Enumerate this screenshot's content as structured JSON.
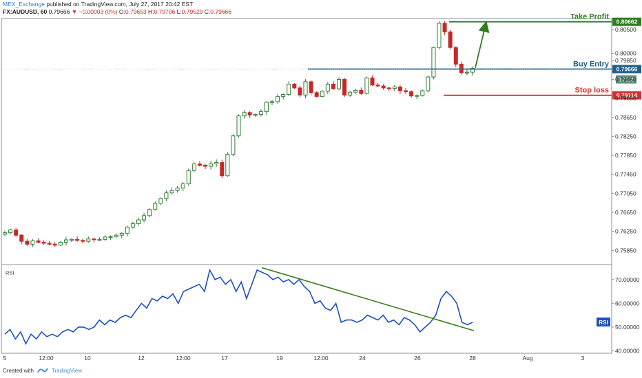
{
  "header": {
    "publisher": "MEX_Exchange",
    "published_text": "published on TradingView.com, July 27, 2017 20:42 EST",
    "symbol": "FX:AUDUSD, 60",
    "last_price": "0.79666",
    "change": "▼ −0.00003 (0%)",
    "ohlc": {
      "o_label": "O:",
      "o": "0.79653",
      "h_label": "H:",
      "h": "0.79706",
      "l_label": "L:",
      "l": "0.79529",
      "c_label": "C:",
      "c": "0.79666"
    }
  },
  "footer": {
    "created_with": "Created with",
    "brand": "TradingView"
  },
  "chart_data": [
    {
      "type": "candlestick",
      "price_axis_ticks": [
        0.805,
        0.8,
        0.7985,
        0.7945,
        0.7905,
        0.7865,
        0.7825,
        0.7785,
        0.7745,
        0.7705,
        0.7665,
        0.7625,
        0.7585
      ],
      "price_axis_labels": [
        "0.80500",
        "0.80000",
        "0.79850",
        "0.79450",
        "0.79050",
        "0.78650",
        "0.78250",
        "0.77850",
        "0.77450",
        "0.77050",
        "0.76650",
        "0.76250",
        "0.75850"
      ],
      "ylim": [
        0.7555,
        0.8073
      ],
      "x_tick_labels": [
        "5",
        "12:00",
        "10",
        "12",
        "12:00",
        "17",
        "19",
        "12:00",
        "24",
        "26",
        "28",
        "Aug",
        "3"
      ],
      "close_path": [
        0.7622,
        0.7628,
        0.7617,
        0.7604,
        0.7598,
        0.7605,
        0.7602,
        0.76,
        0.7598,
        0.7596,
        0.7602,
        0.7607,
        0.7608,
        0.7606,
        0.7604,
        0.7609,
        0.7608,
        0.7608,
        0.7613,
        0.7614,
        0.7617,
        0.7621,
        0.7634,
        0.7641,
        0.7649,
        0.7658,
        0.7671,
        0.7684,
        0.7694,
        0.7706,
        0.7711,
        0.7716,
        0.7725,
        0.7753,
        0.7767,
        0.7764,
        0.7762,
        0.7767,
        0.777,
        0.7742,
        0.7787,
        0.7826,
        0.7868,
        0.7875,
        0.787,
        0.7871,
        0.7877,
        0.7897,
        0.7898,
        0.7909,
        0.7913,
        0.7935,
        0.7927,
        0.7912,
        0.794,
        0.7917,
        0.7909,
        0.792,
        0.7935,
        0.7925,
        0.7945,
        0.7912,
        0.7918,
        0.7922,
        0.7915,
        0.7948,
        0.7933,
        0.7931,
        0.7927,
        0.7926,
        0.7929,
        0.7921,
        0.7919,
        0.791,
        0.7911,
        0.7921,
        0.795,
        0.8012,
        0.8063,
        0.8045,
        0.8012,
        0.7977,
        0.7959,
        0.796,
        0.7968
      ],
      "annotations": [
        {
          "label": "Take Profit",
          "value": 0.80662,
          "value_label": "0.80662",
          "color": "#2e7d1f"
        },
        {
          "label": "Buy Entry",
          "value": 0.79666,
          "value_label": "0.79666",
          "color": "#1f5f8b"
        },
        {
          "label": "Stop loss",
          "value": 0.79114,
          "value_label": "0.79114",
          "color": "#d32f2f"
        }
      ],
      "countdown_label": "17:12",
      "colors": {
        "up": "#2e7d32",
        "down": "#c62828",
        "arrow": "#2e7d1f"
      }
    },
    {
      "type": "line",
      "name": "RSI",
      "panel_label": "RSI",
      "y_ticks": [
        70,
        60,
        50,
        40
      ],
      "y_tick_labels": [
        "70.00000",
        "60.00000",
        "50.00000",
        "40.00000"
      ],
      "ylim": [
        39,
        76
      ],
      "current_label": "RSI",
      "values": [
        47,
        49,
        45,
        48,
        43,
        47,
        45,
        48,
        46,
        47,
        46,
        48,
        49,
        48,
        50,
        50,
        49,
        50,
        53,
        51,
        53,
        52,
        54,
        55,
        54,
        57,
        60,
        58,
        62,
        61,
        63,
        62,
        64,
        60,
        65,
        66,
        67,
        68,
        65,
        74,
        70,
        71,
        68,
        70,
        65,
        69,
        62,
        68,
        74,
        73,
        72,
        70,
        71,
        69,
        70,
        68,
        70,
        67,
        65,
        60,
        61,
        58,
        57,
        60,
        52,
        53,
        53,
        52,
        53,
        55,
        54,
        53,
        55,
        52,
        53,
        51,
        54,
        53,
        51,
        48,
        50,
        52,
        55,
        62,
        65,
        63,
        60,
        52,
        51,
        52
      ],
      "trendline": {
        "from": 75,
        "to": 48.5
      },
      "color": "#1f4fbf",
      "trend_color": "#3f7d1f"
    }
  ]
}
